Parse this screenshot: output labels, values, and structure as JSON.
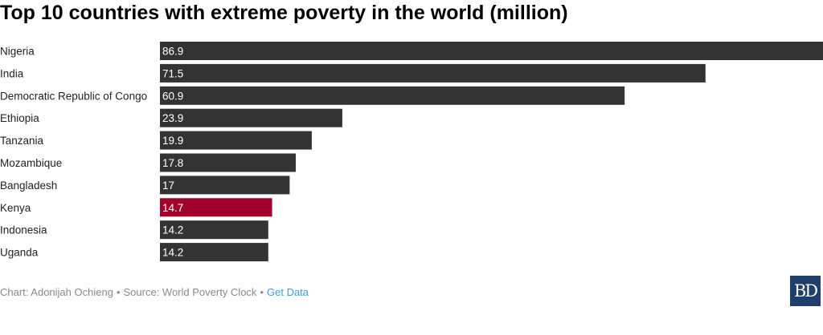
{
  "title": "Top 10 countries with extreme poverty in the world (million)",
  "footer": {
    "chart_by": "Chart: Adonijah Ochieng",
    "separator": "•",
    "source": "Source: World Poverty Clock",
    "get_data": "Get Data"
  },
  "logo": {
    "text": "BD"
  },
  "colors": {
    "bar": "#333333",
    "highlight": "#a0002b",
    "label_text": "#ffffff",
    "category_text": "#222222",
    "logo_bg": "#1f3f6a",
    "link": "#3ea3cc"
  },
  "chart_data": {
    "type": "bar",
    "orientation": "horizontal",
    "title": "Top 10 countries with extreme poverty in the world (million)",
    "categories": [
      "Nigeria",
      "India",
      "Democratic Republic of Congo",
      "Ethiopia",
      "Tanzania",
      "Mozambique",
      "Bangladesh",
      "Kenya",
      "Indonesia",
      "Uganda"
    ],
    "values": [
      86.9,
      71.5,
      60.9,
      23.9,
      19.9,
      17.8,
      17,
      14.7,
      14.2,
      14.2
    ],
    "value_labels": [
      "86.9",
      "71.5",
      "60.9",
      "23.9",
      "19.9",
      "17.8",
      "17",
      "14.7",
      "14.2",
      "14.2"
    ],
    "highlight": "Kenya",
    "xlim": [
      0,
      86.9
    ],
    "grid": false,
    "legend": "none",
    "xlabel": "",
    "ylabel": ""
  }
}
